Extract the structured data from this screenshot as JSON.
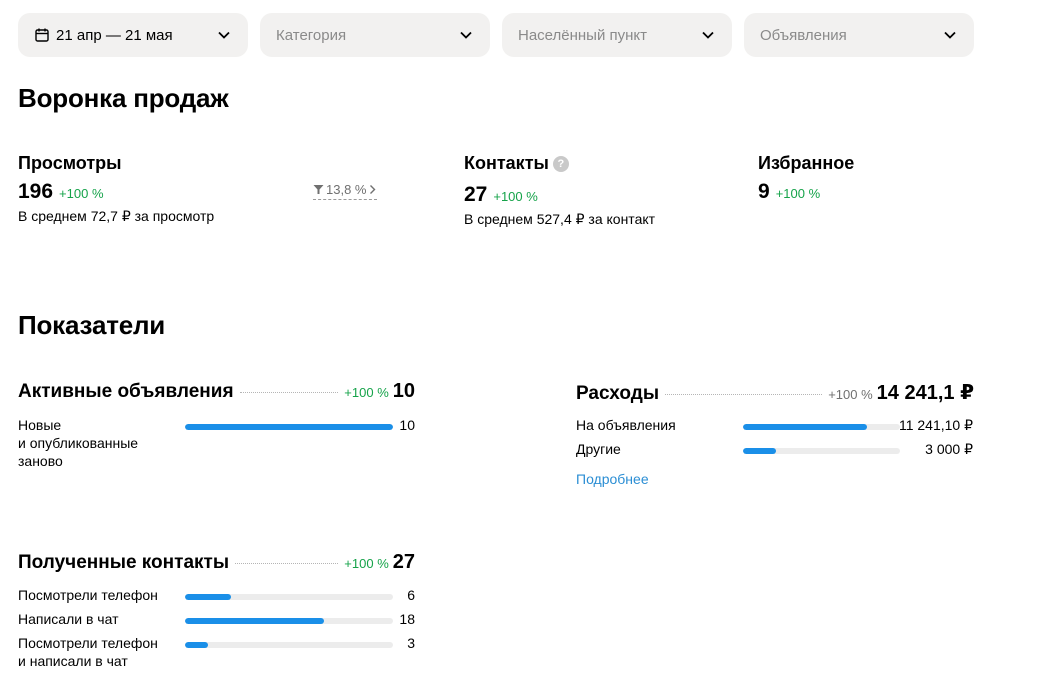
{
  "filters": {
    "date": "21 апр — 21 мая",
    "category": "Категория",
    "locality": "Населённый пункт",
    "ads": "Объявления"
  },
  "funnel": {
    "title": "Воронка продаж",
    "views": {
      "label": "Просмотры",
      "value": "196",
      "delta": "+100 %",
      "sub": "В среднем 72,7 ₽ за просмотр"
    },
    "conversion": "13,8 %",
    "contacts": {
      "label": "Контакты",
      "help": "?",
      "value": "27",
      "delta": "+100 %",
      "sub": "В среднем 527,4 ₽ за контакт"
    },
    "favorites": {
      "label": "Избранное",
      "value": "9",
      "delta": "+100 %"
    }
  },
  "indicators": {
    "title": "Показатели",
    "active_ads": {
      "title": "Активные объявления",
      "delta": "+100 %",
      "value": "10",
      "rows": [
        {
          "label": "Новые\nи опубликованные\nзаново",
          "value": "10",
          "fraction": 1.0
        }
      ]
    },
    "expenses": {
      "title": "Расходы",
      "delta": "+100 %",
      "value": "14 241,1 ₽",
      "rows": [
        {
          "label": "На объявления",
          "value": "11 241,10 ₽",
          "fraction": 0.79
        },
        {
          "label": "Другие",
          "value": "3 000 ₽",
          "fraction": 0.21
        }
      ],
      "more_link": "Подробнее"
    },
    "received_contacts": {
      "title": "Полученные контакты",
      "delta": "+100 %",
      "value": "27",
      "rows": [
        {
          "label": "Посмотрели телефон",
          "value": "6",
          "fraction": 0.22
        },
        {
          "label": "Написали в чат",
          "value": "18",
          "fraction": 0.67
        },
        {
          "label": "Посмотрели телефон\nи написали в чат",
          "value": "3",
          "fraction": 0.11
        }
      ]
    }
  },
  "colors": {
    "accent": "#1a8fe8",
    "positive": "#16a34a",
    "link": "#2b8ed4",
    "filter_bg": "#f2f1f0"
  }
}
